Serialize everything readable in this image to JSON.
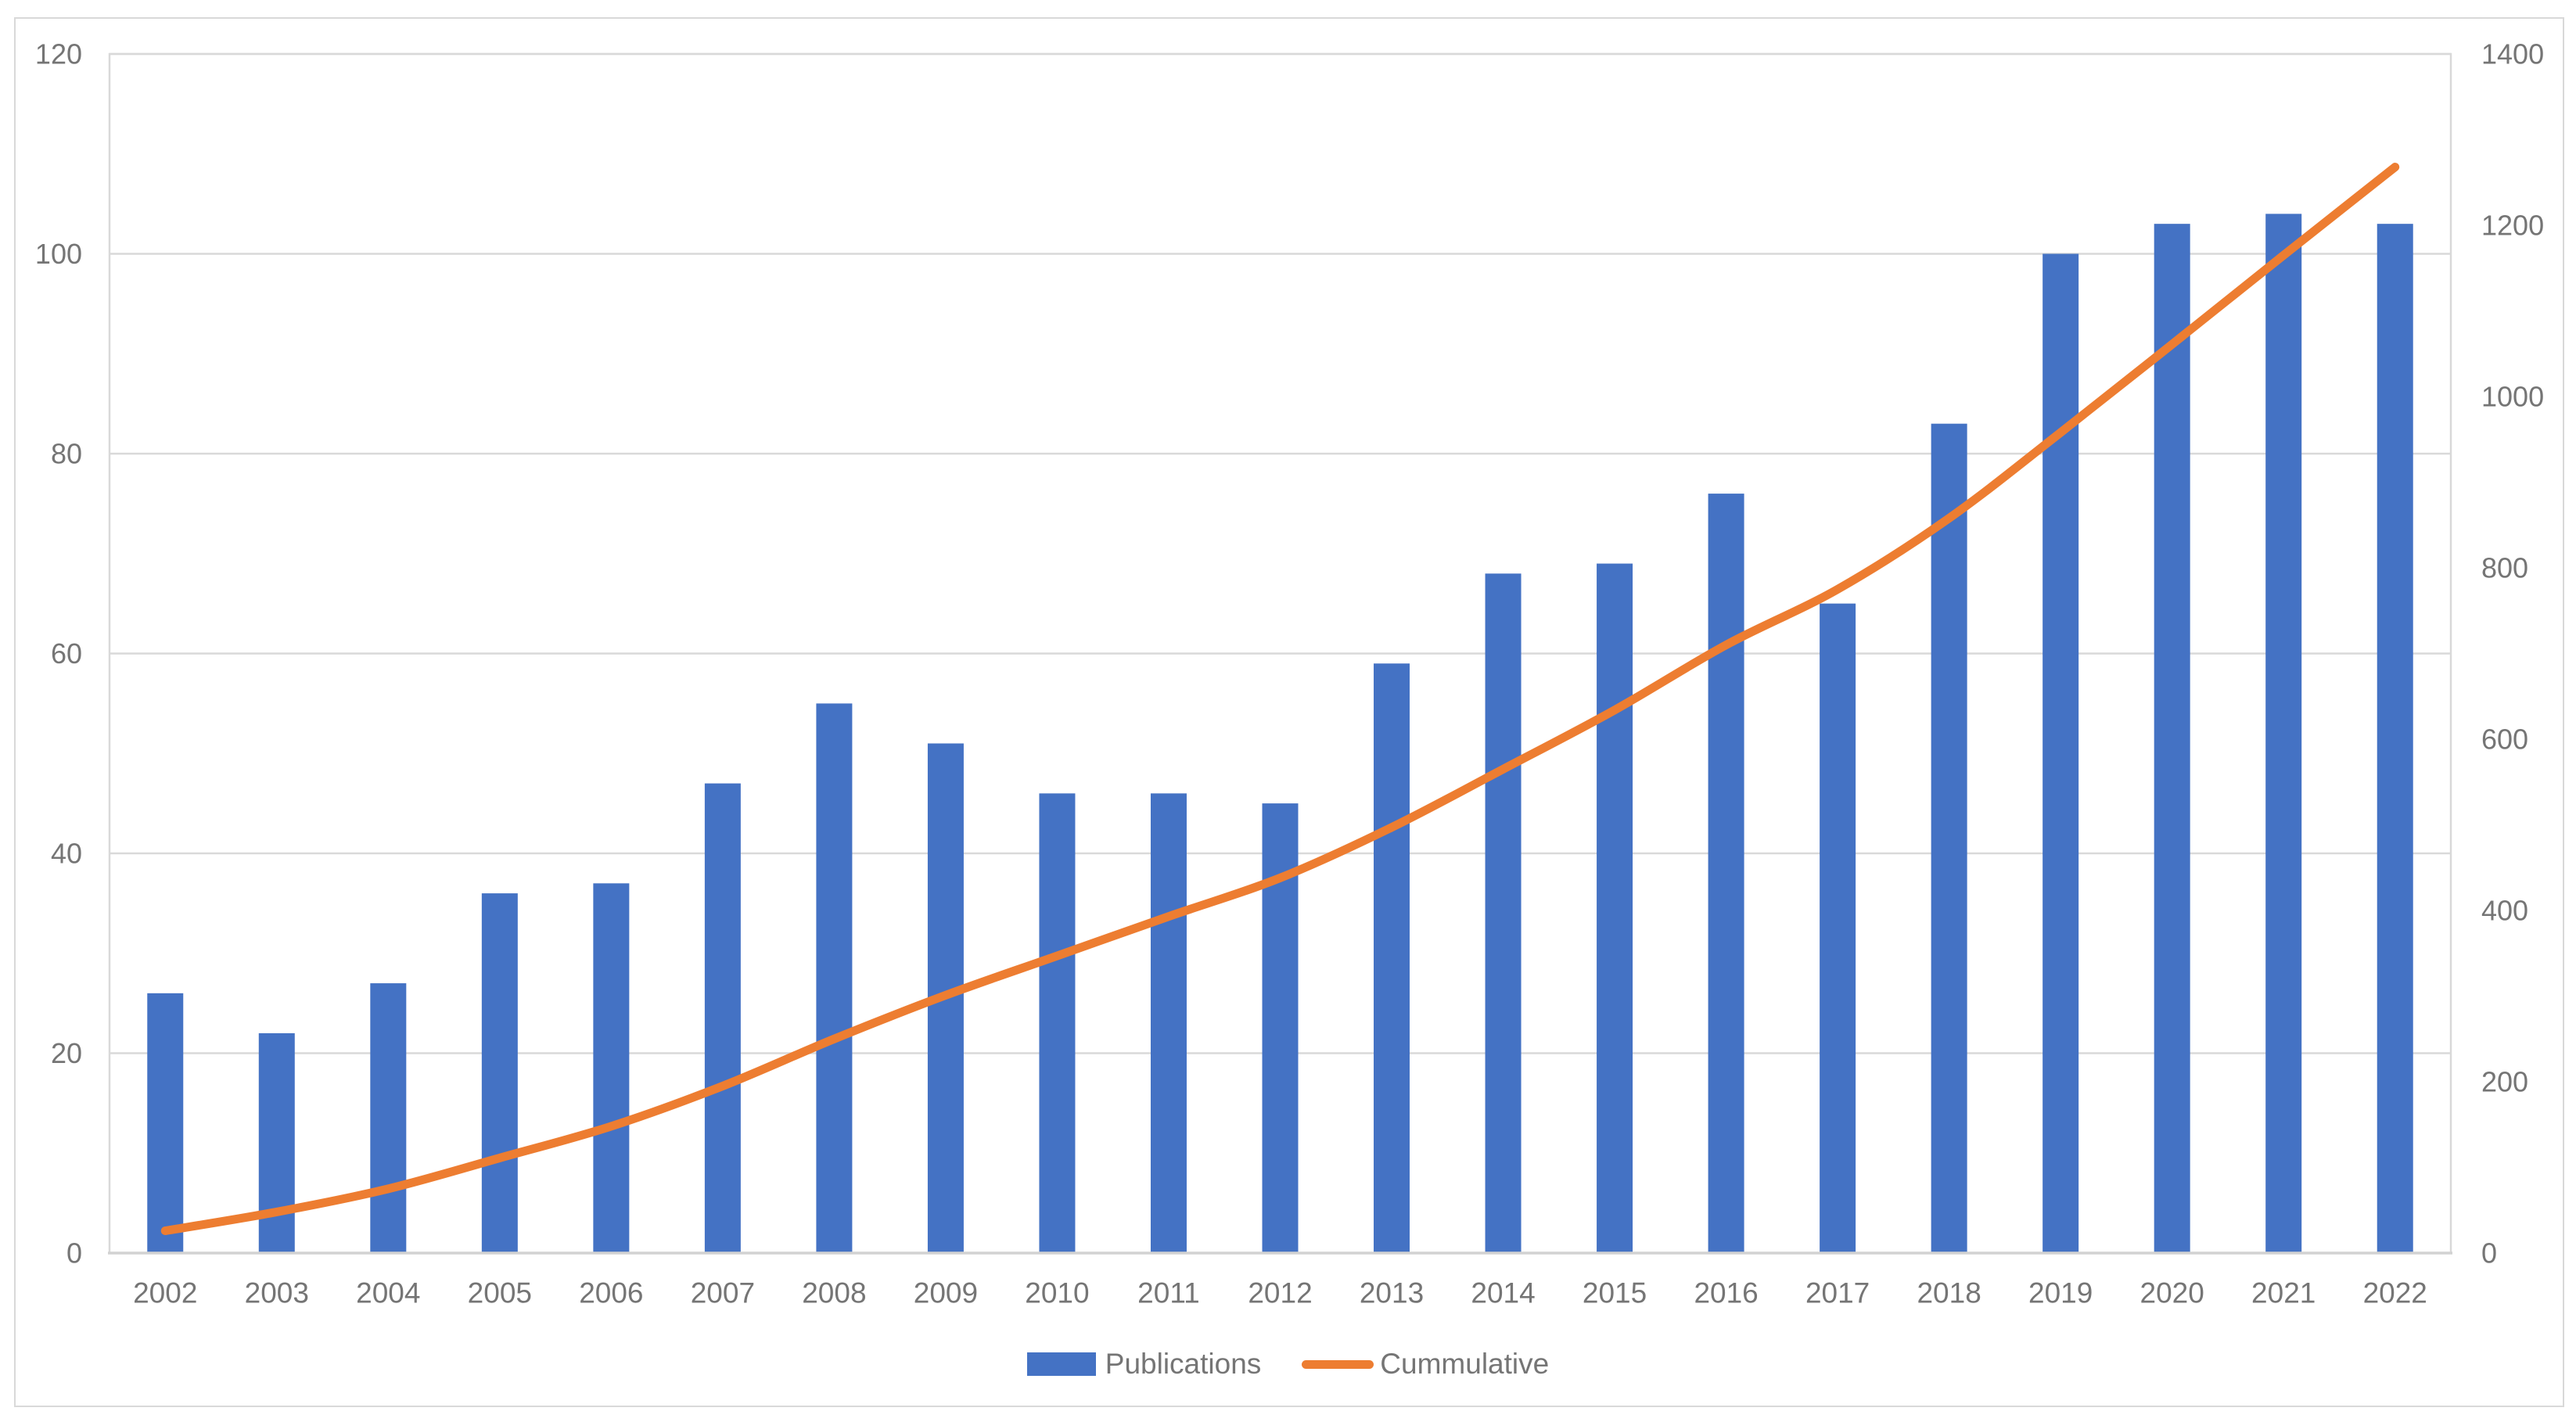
{
  "chart_data": {
    "type": "combo-bar-line",
    "title": "",
    "categories": [
      "2002",
      "2003",
      "2004",
      "2005",
      "2006",
      "2007",
      "2008",
      "2009",
      "2010",
      "2011",
      "2012",
      "2013",
      "2014",
      "2015",
      "2016",
      "2017",
      "2018",
      "2019",
      "2020",
      "2021",
      "2022"
    ],
    "series": [
      {
        "name": "Publications",
        "type": "bar",
        "axis": "left",
        "color": "#4472C4",
        "values": [
          26,
          22,
          27,
          36,
          37,
          47,
          55,
          51,
          46,
          46,
          45,
          59,
          68,
          69,
          76,
          65,
          83,
          100,
          103,
          104,
          103
        ]
      },
      {
        "name": "Cummulative",
        "type": "line",
        "axis": "right",
        "color": "#ED7D31",
        "smooth": true,
        "values": [
          26,
          48,
          75,
          111,
          148,
          195,
          250,
          301,
          347,
          393,
          438,
          497,
          565,
          634,
          710,
          775,
          858,
          958,
          1061,
          1165,
          1268
        ]
      }
    ],
    "left_axis": {
      "min": 0,
      "max": 120,
      "step": 20,
      "ticks": [
        "0",
        "20",
        "40",
        "60",
        "80",
        "100",
        "120"
      ]
    },
    "right_axis": {
      "min": 0,
      "max": 1400,
      "step": 200,
      "ticks": [
        "0",
        "200",
        "400",
        "600",
        "800",
        "1000",
        "1200",
        "1400"
      ]
    },
    "grid": true,
    "legend_position": "bottom",
    "colors": {
      "bar": "#4472C4",
      "line": "#ED7D31",
      "gridline": "#D9D9D9",
      "axis_line": "#D2D2D2",
      "plot_border": "#D9D9D9",
      "tick_text": "#757575",
      "frame_border": "#D9D9D9",
      "background": "#FFFFFF"
    }
  }
}
